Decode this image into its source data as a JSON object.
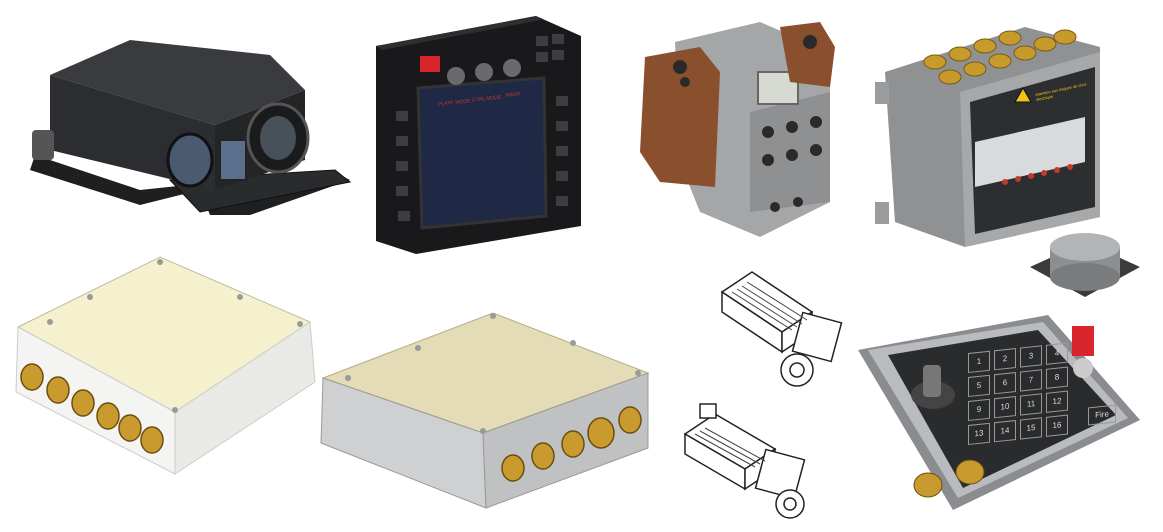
{
  "scene": {
    "description_hidden": true,
    "items": [
      {
        "id": "camera",
        "name": "Thermal Camera Unit"
      },
      {
        "id": "display",
        "name": "Control Display Terminal"
      },
      {
        "id": "actuator",
        "name": "Actuator Housing"
      },
      {
        "id": "power",
        "name": "Power Distribution Box"
      },
      {
        "id": "box_white",
        "name": "Electronics Enclosure (White)"
      },
      {
        "id": "box_beige",
        "name": "Electronics Enclosure (Beige)"
      },
      {
        "id": "motor_top",
        "name": "Servo Motor"
      },
      {
        "id": "motor_bottom",
        "name": "Servo Motor"
      },
      {
        "id": "keypad",
        "name": "Operator Keypad"
      },
      {
        "id": "puck",
        "name": "Vibration Isolator"
      }
    ]
  },
  "display": {
    "knob_labels": [
      "PLATF. MODE",
      "CTRL MODE",
      "WEAP"
    ]
  },
  "power": {
    "warning_text": "Attention aux risques de choc électrique"
  },
  "keypad": {
    "keys": [
      "1",
      "2",
      "3",
      "4",
      "5",
      "6",
      "7",
      "8",
      "9",
      "10",
      "11",
      "12",
      "13",
      "14",
      "15",
      "16"
    ],
    "fire_label": "Fire"
  },
  "colors": {
    "dark_metal": "#2b2c2e",
    "gray_metal": "#9a9c9e",
    "cream": "#f5f1cf",
    "beige": "#e3dcb6",
    "brass": "#c79a2c",
    "cork": "#8a4f2c",
    "red_switch": "#d8262c"
  }
}
